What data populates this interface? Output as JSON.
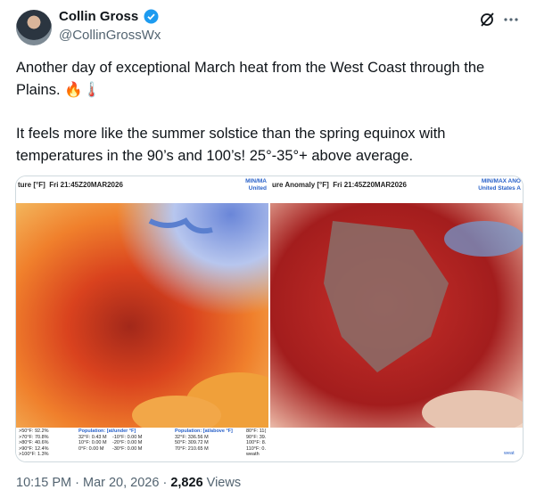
{
  "author": {
    "name": "Collin Gross",
    "handle": "@CollinGrossWx"
  },
  "tweet": {
    "paragraphs": [
      "Another day of exceptional March heat from the West Coast through the Plains. 🔥🌡️",
      "It feels more like the summer solstice than the spring equinox with temperatures in the 90’s and 100’s! 25°-35°+ above average."
    ]
  },
  "media": [
    {
      "header": "ture [°F]  Fri 21:45Z20MAR2026",
      "corner": [
        "MIN/MA",
        "United"
      ],
      "stats": [
        ">50°F: 92.2%",
        ">70°F: 70.8%",
        ">80°F: 40.6%",
        ">90°F: 12.4%",
        ">100°F: 1.3%"
      ],
      "population_under": {
        "title": "Population: [at/under °F]",
        "rows": [
          "32°F: 0.43 M",
          "-10°F: 0.00 M",
          "10°F: 0.00 M",
          "-20°F: 0.00 M",
          "0°F: 0.00 M",
          "-30°F: 0.00 M"
        ]
      },
      "population_above": {
        "title": "Population: [at/above °F]",
        "rows": [
          "32°F: 336.56 M",
          "50°F: 309.72 M",
          "70°F: 210.65 M"
        ]
      },
      "edge": [
        "80°F: 11(",
        "90°F: 39.",
        "100°F: 8.",
        "110°F: 0.",
        "weath"
      ]
    },
    {
      "header": "ure Anomaly [°F]  Fri 21:45Z20MAR2026",
      "corner": [
        "MIN/MAX ANO",
        "United States A"
      ],
      "edge": [
        "weat"
      ]
    }
  ],
  "footer": {
    "time": "10:15 PM",
    "separator": "·",
    "date": "Mar 20, 2026",
    "views_count": "2,826",
    "views_label": "Views"
  }
}
